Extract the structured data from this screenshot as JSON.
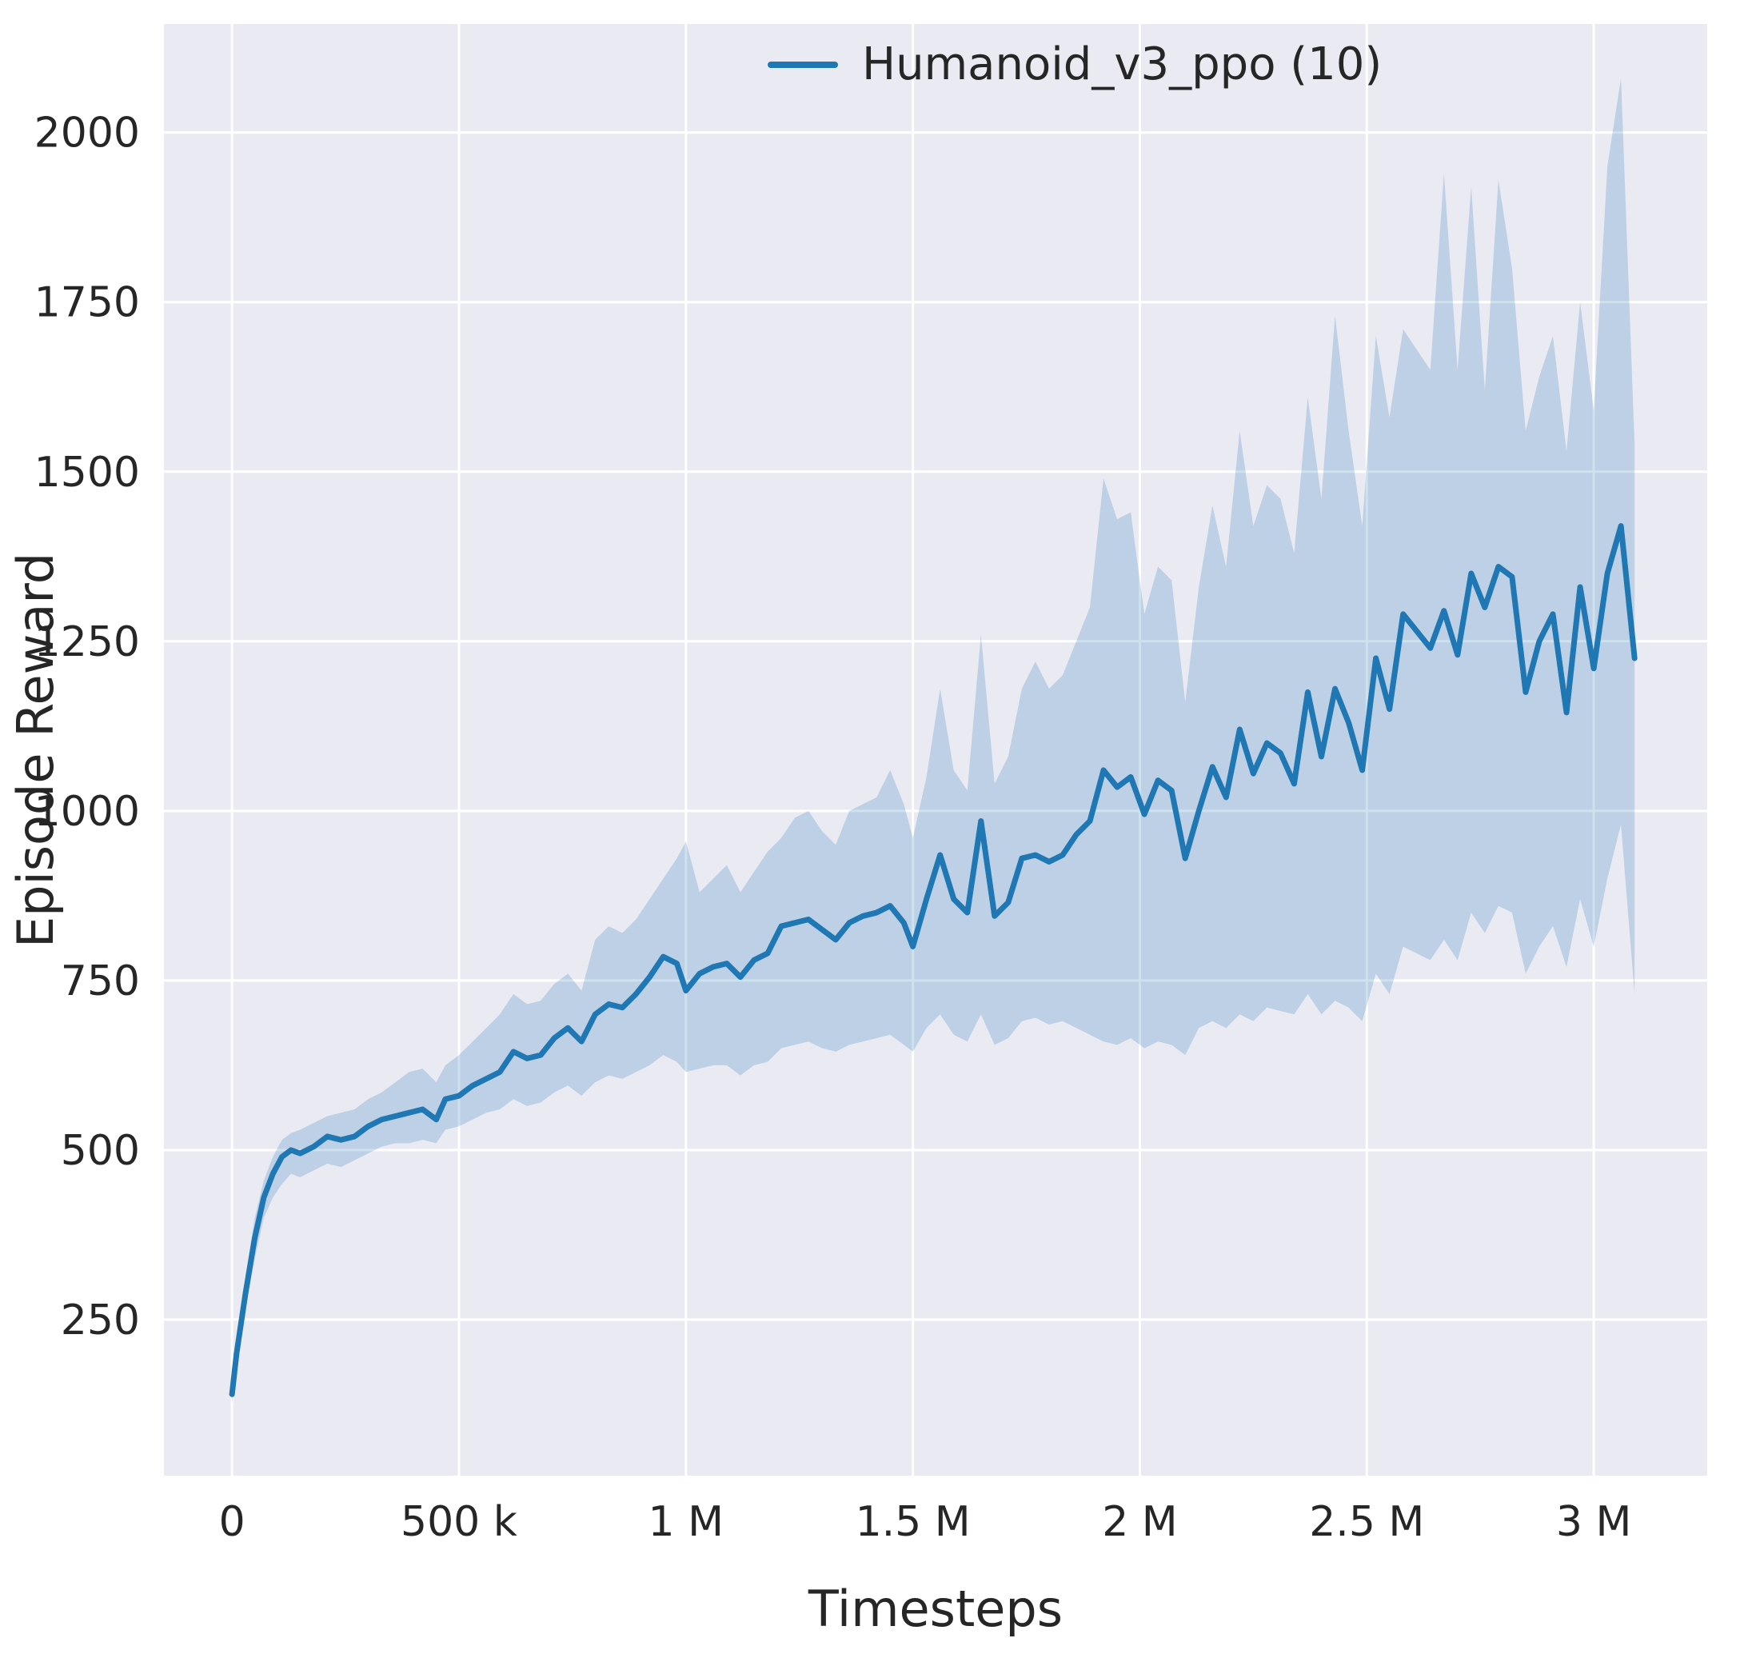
{
  "chart_data": {
    "type": "line",
    "title": "",
    "xlabel": "Timesteps",
    "ylabel": "Episode Reward",
    "legend_position": "upper right (inside axes)",
    "grid": true,
    "xlim": [
      -150000,
      3250000
    ],
    "ylim": [
      20,
      2160
    ],
    "x_ticks": [
      {
        "value": 0,
        "label": "0"
      },
      {
        "value": 500000,
        "label": "500 k"
      },
      {
        "value": 1000000,
        "label": "1 M"
      },
      {
        "value": 1500000,
        "label": "1.5 M"
      },
      {
        "value": 2000000,
        "label": "2 M"
      },
      {
        "value": 2500000,
        "label": "2.5 M"
      },
      {
        "value": 3000000,
        "label": "3 M"
      }
    ],
    "y_ticks": [
      {
        "value": 250,
        "label": "250"
      },
      {
        "value": 500,
        "label": "500"
      },
      {
        "value": 750,
        "label": "750"
      },
      {
        "value": 1000,
        "label": "1000"
      },
      {
        "value": 1250,
        "label": "1250"
      },
      {
        "value": 1500,
        "label": "1500"
      },
      {
        "value": 1750,
        "label": "1750"
      },
      {
        "value": 2000,
        "label": "2000"
      }
    ],
    "colors": {
      "line": "#1f77b4",
      "band": "#1f77b4",
      "band_opacity": 0.22,
      "axes_bg": "#eaeaf2",
      "figure_bg": "#ffffff",
      "grid": "#ffffff",
      "text": "#262626"
    },
    "series": [
      {
        "name": "Humanoid_v3_ppo (10)",
        "x": [
          0,
          10000,
          30000,
          50000,
          70000,
          90000,
          110000,
          130000,
          150000,
          180000,
          210000,
          240000,
          270000,
          300000,
          330000,
          360000,
          390000,
          420000,
          450000,
          470000,
          500000,
          530000,
          560000,
          590000,
          620000,
          650000,
          680000,
          710000,
          740000,
          770000,
          800000,
          830000,
          860000,
          890000,
          920000,
          950000,
          980000,
          1000000,
          1030000,
          1060000,
          1090000,
          1120000,
          1150000,
          1180000,
          1210000,
          1240000,
          1270000,
          1300000,
          1330000,
          1360000,
          1390000,
          1420000,
          1450000,
          1480000,
          1500000,
          1530000,
          1560000,
          1590000,
          1620000,
          1650000,
          1680000,
          1710000,
          1740000,
          1770000,
          1800000,
          1830000,
          1860000,
          1890000,
          1920000,
          1950000,
          1980000,
          2010000,
          2040000,
          2070000,
          2100000,
          2130000,
          2160000,
          2190000,
          2220000,
          2250000,
          2280000,
          2310000,
          2340000,
          2370000,
          2400000,
          2430000,
          2460000,
          2490000,
          2520000,
          2550000,
          2580000,
          2610000,
          2640000,
          2670000,
          2700000,
          2730000,
          2760000,
          2790000,
          2820000,
          2850000,
          2880000,
          2910000,
          2940000,
          2970000,
          3000000,
          3030000,
          3060000,
          3090000
        ],
        "mean": [
          140,
          200,
          290,
          370,
          430,
          465,
          490,
          500,
          495,
          505,
          520,
          515,
          520,
          535,
          545,
          550,
          555,
          560,
          545,
          575,
          580,
          595,
          605,
          615,
          645,
          635,
          640,
          665,
          680,
          660,
          700,
          715,
          710,
          730,
          755,
          785,
          775,
          735,
          760,
          770,
          775,
          755,
          780,
          790,
          830,
          835,
          840,
          825,
          810,
          835,
          845,
          850,
          860,
          835,
          800,
          870,
          935,
          870,
          850,
          985,
          845,
          865,
          930,
          935,
          925,
          935,
          965,
          985,
          1060,
          1035,
          1050,
          995,
          1045,
          1030,
          930,
          1000,
          1065,
          1020,
          1120,
          1055,
          1100,
          1085,
          1040,
          1175,
          1080,
          1180,
          1130,
          1060,
          1225,
          1150,
          1290,
          1265,
          1240,
          1295,
          1230,
          1350,
          1300,
          1360,
          1345,
          1175,
          1250,
          1290,
          1145,
          1330,
          1210,
          1350,
          1420,
          1225
        ],
        "lower": [
          125,
          185,
          265,
          340,
          400,
          430,
          450,
          465,
          460,
          470,
          480,
          475,
          485,
          495,
          505,
          510,
          510,
          515,
          510,
          530,
          535,
          545,
          555,
          560,
          575,
          565,
          570,
          585,
          595,
          580,
          600,
          610,
          605,
          615,
          625,
          640,
          630,
          615,
          620,
          625,
          625,
          610,
          625,
          630,
          650,
          655,
          660,
          650,
          645,
          655,
          660,
          665,
          670,
          655,
          645,
          680,
          700,
          670,
          660,
          700,
          655,
          665,
          690,
          695,
          685,
          690,
          680,
          670,
          660,
          655,
          665,
          650,
          660,
          655,
          640,
          680,
          690,
          680,
          700,
          690,
          710,
          705,
          700,
          730,
          700,
          720,
          710,
          690,
          760,
          730,
          800,
          790,
          780,
          810,
          780,
          850,
          820,
          860,
          850,
          760,
          800,
          830,
          770,
          870,
          800,
          900,
          980,
          730
        ],
        "upper": [
          155,
          215,
          315,
          400,
          455,
          490,
          515,
          525,
          530,
          540,
          550,
          555,
          560,
          575,
          585,
          600,
          615,
          620,
          600,
          625,
          640,
          660,
          680,
          700,
          730,
          715,
          720,
          745,
          760,
          735,
          810,
          830,
          820,
          840,
          870,
          900,
          930,
          955,
          880,
          900,
          920,
          880,
          910,
          940,
          960,
          990,
          1000,
          970,
          950,
          1000,
          1010,
          1020,
          1060,
          1010,
          960,
          1050,
          1180,
          1060,
          1030,
          1260,
          1040,
          1080,
          1180,
          1220,
          1180,
          1200,
          1250,
          1300,
          1490,
          1430,
          1440,
          1290,
          1360,
          1340,
          1160,
          1330,
          1450,
          1360,
          1560,
          1420,
          1480,
          1460,
          1380,
          1610,
          1460,
          1730,
          1560,
          1420,
          1700,
          1580,
          1710,
          1680,
          1650,
          1940,
          1650,
          1920,
          1620,
          1930,
          1800,
          1560,
          1640,
          1700,
          1530,
          1750,
          1590,
          1950,
          2080,
          1540
        ]
      }
    ]
  }
}
